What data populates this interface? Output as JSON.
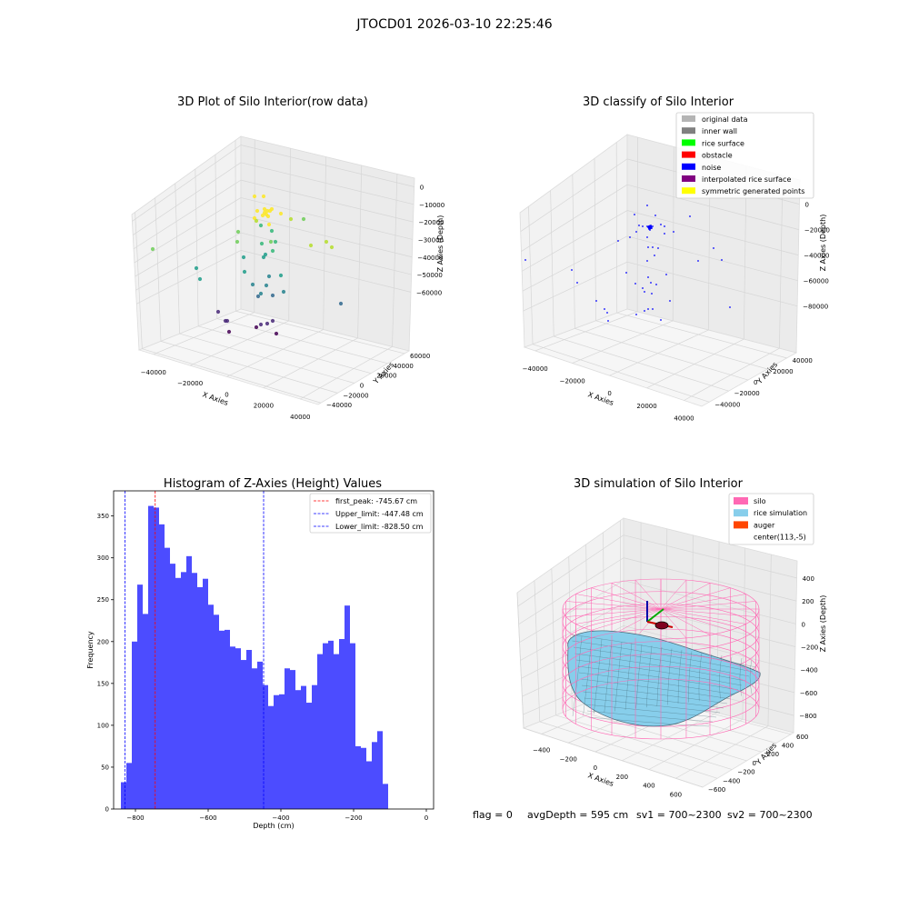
{
  "figure_title": "JTOCD01 2026-03-10 22:25:46",
  "footer": {
    "flag": "flag = 0",
    "avg": "avgDepth = 595 cm",
    "sv1": "sv1 = 700~2300",
    "sv2": "sv2 = 700~2300"
  },
  "colors": {
    "hist_bar": "#4c4cff",
    "first_peak_line": "#ff0000",
    "limit_line": "#0000ff",
    "silo": "#ff69b4",
    "rice_sim": "#87ceeb",
    "auger": "#ff4500",
    "noise": "#0000ff"
  },
  "chart_data": [
    {
      "type": "scatter",
      "title": "3D Plot of Silo Interior(row data)",
      "xlabel": "X Axies",
      "ylabel": "Y Axies",
      "zlabel": "Z Axies (Depth)",
      "xticks": [
        "−40000",
        "−20000",
        "0",
        "20000",
        "40000"
      ],
      "yticks": [
        "−40000",
        "−20000",
        "0",
        "20000",
        "40000",
        "60000"
      ],
      "zticks": [
        "0",
        "−10000",
        "−20000",
        "−30000",
        "−40000",
        "−50000",
        "−60000"
      ],
      "colormap": "viridis"
    },
    {
      "type": "scatter",
      "title": "3D classify of Silo Interior",
      "xlabel": "X Axies",
      "ylabel": "Y Axies",
      "zlabel": "Z Axies (Depth)",
      "xticks": [
        "−40000",
        "−20000",
        "0",
        "20000",
        "40000"
      ],
      "yticks": [
        "−40000",
        "−20000",
        "0",
        "20000",
        "40000"
      ],
      "zticks": [
        "0",
        "−20000",
        "−40000",
        "−60000",
        "−80000"
      ],
      "legend": [
        {
          "label": "original data",
          "color": "#b4b4b4"
        },
        {
          "label": "inner wall",
          "color": "#808080"
        },
        {
          "label": "rice surface",
          "color": "#00ff00"
        },
        {
          "label": "obstacle",
          "color": "#ff0000"
        },
        {
          "label": "noise",
          "color": "#0000ff"
        },
        {
          "label": "interpolated rice surface",
          "color": "#800080"
        },
        {
          "label": "symmetric generated points",
          "color": "#ffff00"
        }
      ],
      "legend_position": "upper right"
    },
    {
      "type": "bar",
      "title": "Histogram of Z-Axies (Height) Values",
      "xlabel": "Depth (cm)",
      "ylabel": "Frequency",
      "xlim": [
        -860,
        20
      ],
      "ylim": [
        0,
        380
      ],
      "xticks": [
        -800,
        -600,
        -400,
        -200,
        0
      ],
      "xtick_labels": [
        "−800",
        "−600",
        "−400",
        "−200",
        "0"
      ],
      "yticks": [
        0,
        50,
        100,
        150,
        200,
        250,
        300,
        350
      ],
      "bin_start": -840,
      "bin_width": 15,
      "values": [
        32,
        55,
        200,
        268,
        233,
        362,
        360,
        340,
        312,
        293,
        276,
        283,
        302,
        282,
        265,
        275,
        244,
        232,
        213,
        214,
        194,
        192,
        178,
        190,
        168,
        176,
        148,
        123,
        136,
        137,
        168,
        166,
        142,
        147,
        127,
        148,
        185,
        198,
        201,
        185,
        203,
        243,
        198,
        75,
        73,
        57,
        80,
        93,
        30
      ],
      "lines": [
        {
          "label": "first_peak: -745.67 cm",
          "x": -745.67,
          "color": "#ff0000"
        },
        {
          "label": "Upper_limit: -447.48 cm",
          "x": -447.48,
          "color": "#0000ff"
        },
        {
          "label": "Lower_limit: -828.50 cm",
          "x": -828.5,
          "color": "#0000ff"
        }
      ],
      "legend_position": "upper right"
    },
    {
      "type": "surface",
      "title": "3D simulation of Silo Interior",
      "xlabel": "X Axies",
      "ylabel": "Y Axies",
      "zlabel": "Z Axies (Depth)",
      "xticks": [
        "−400",
        "−200",
        "0",
        "200",
        "400",
        "600"
      ],
      "yticks": [
        "−600",
        "−400",
        "−200",
        "0",
        "200",
        "400",
        "600"
      ],
      "zticks": [
        "400",
        "200",
        "0",
        "−200",
        "−400",
        "−600",
        "−800"
      ],
      "legend": [
        {
          "label": "silo",
          "color": "#ff69b4"
        },
        {
          "label": "rice simulation",
          "color": "#87ceeb"
        },
        {
          "label": "auger",
          "color": "#ff4500"
        },
        {
          "label": "center(113,-5)",
          "color": ""
        }
      ],
      "legend_position": "upper right"
    }
  ]
}
